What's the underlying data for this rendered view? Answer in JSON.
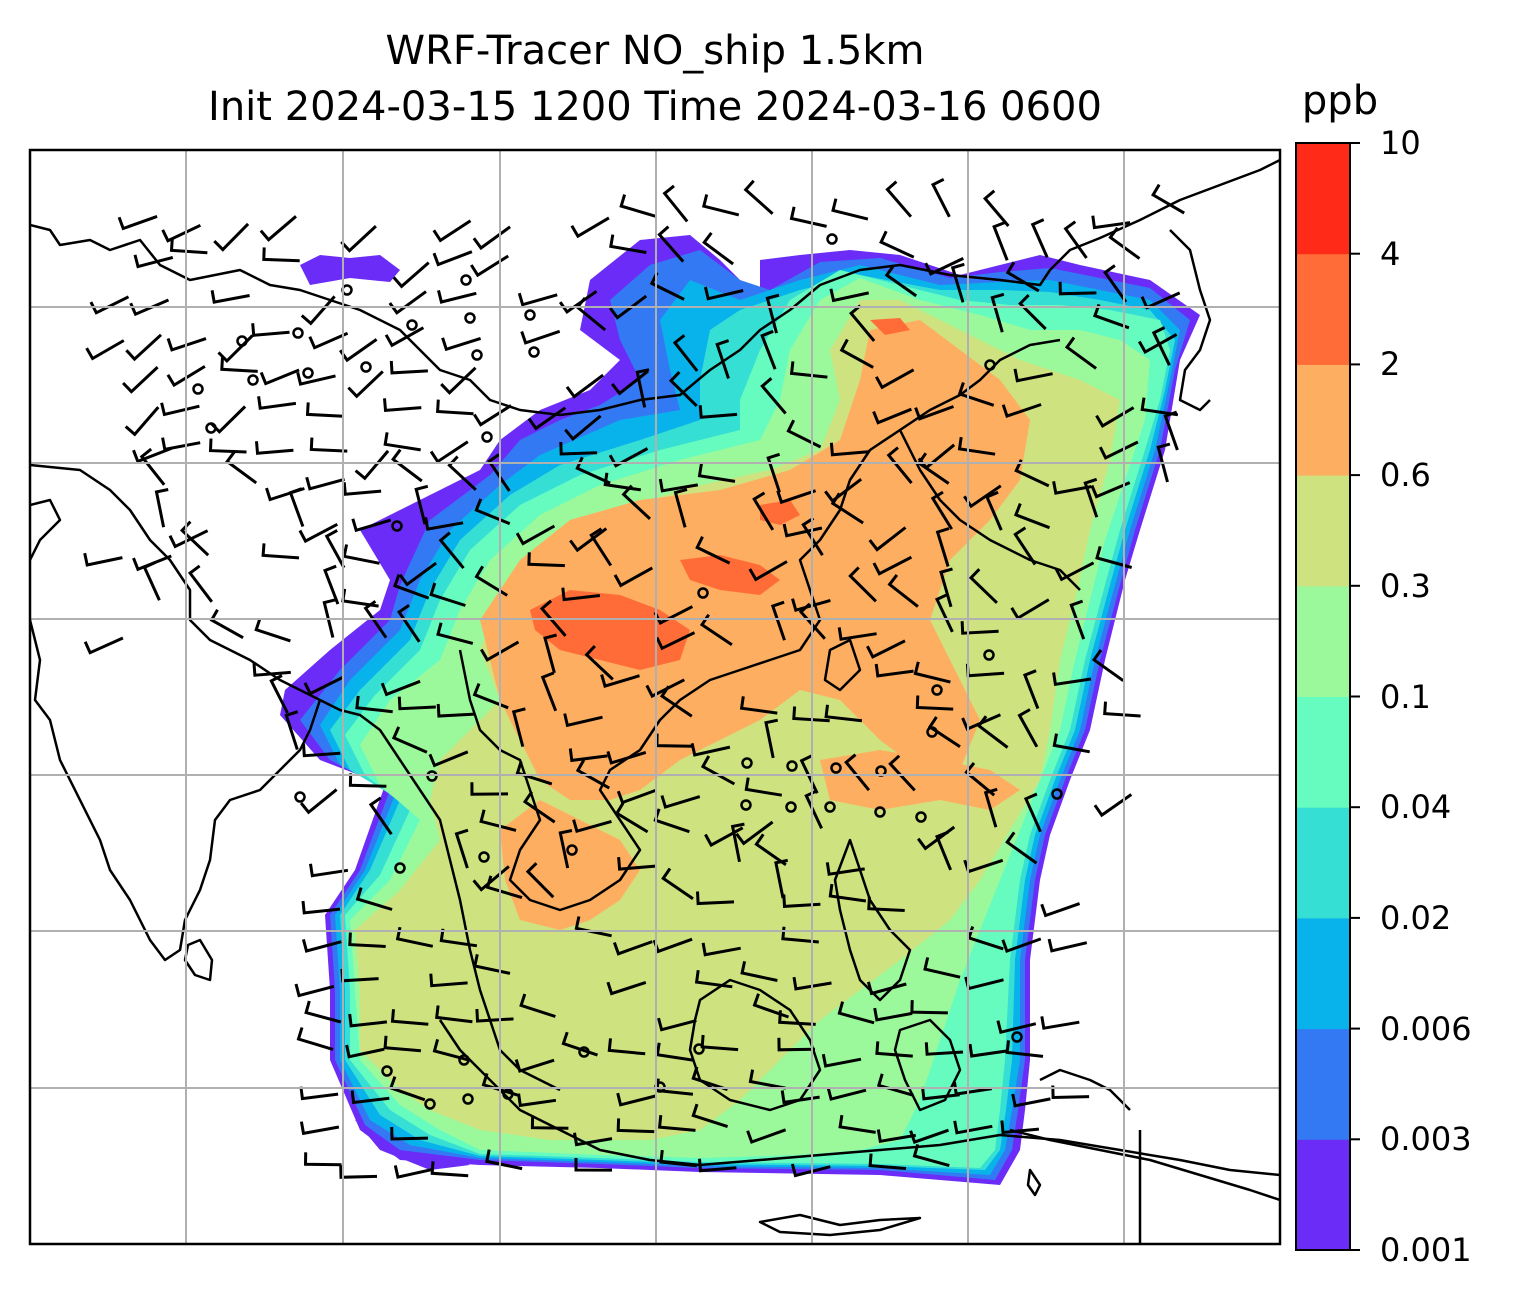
{
  "title": {
    "line1": "WRF-Tracer NO_ship 1.5km",
    "line2": "Init 2024-03-15 1200 Time 2024-03-16 0600"
  },
  "colorbar": {
    "unit": "ppb",
    "levels": [
      "0.001",
      "0.003",
      "0.006",
      "0.02",
      "0.04",
      "0.1",
      "0.3",
      "0.6",
      "2",
      "4",
      "10"
    ],
    "colors": [
      "#6a2cf6",
      "#3479f4",
      "#08b2ea",
      "#36dfd4",
      "#66fbbf",
      "#9cf99b",
      "#cfe280",
      "#fdae61",
      "#ff6c37",
      "#ff2a17"
    ]
  },
  "map": {
    "field": "NO_ship tracer concentration at 1.5km",
    "overlay": "wind barbs and calm-wind circles",
    "gridlines": true,
    "coastlines": true
  }
}
